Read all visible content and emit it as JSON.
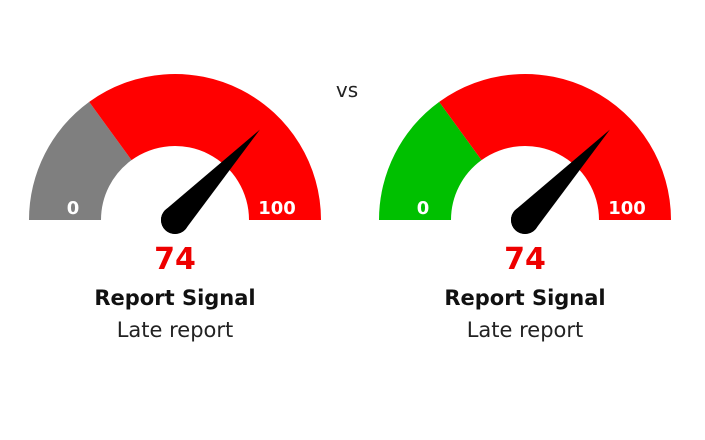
{
  "comparison_label": "vs",
  "chart_data": [
    {
      "type": "gauge",
      "min": 0,
      "max": 100,
      "value": 74,
      "min_label": "0",
      "max_label": "100",
      "value_label": "74",
      "value_color": "#ee0000",
      "title": "Report Signal",
      "subtitle": "Late report",
      "bands": [
        {
          "from": 0,
          "to": 30,
          "color": "#7f7f7f"
        },
        {
          "from": 30,
          "to": 100,
          "color": "#ff0000"
        }
      ],
      "needle_color": "#000000"
    },
    {
      "type": "gauge",
      "min": 0,
      "max": 100,
      "value": 74,
      "min_label": "0",
      "max_label": "100",
      "value_label": "74",
      "value_color": "#ee0000",
      "title": "Report Signal",
      "subtitle": "Late report",
      "bands": [
        {
          "from": 0,
          "to": 30,
          "color": "#00c000"
        },
        {
          "from": 30,
          "to": 100,
          "color": "#ff0000"
        }
      ],
      "needle_color": "#000000"
    }
  ]
}
